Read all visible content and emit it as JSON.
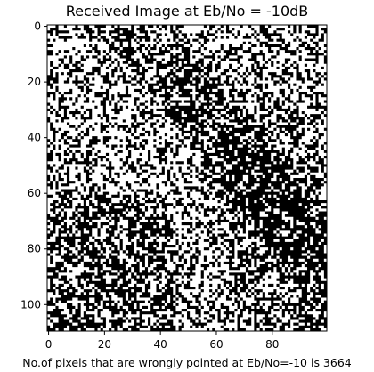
{
  "chart_data": {
    "type": "heatmap",
    "title": "Received Image at Eb/No = -10dB",
    "xlabel": "No.of pixels that are wrongly pointed at Eb/No=-10 is 3664",
    "ylabel": "",
    "colormap": "binary (black / white)",
    "grid": false,
    "image_size": {
      "columns": 100,
      "rows": 110
    },
    "xlim": [
      -0.5,
      99.5
    ],
    "ylim": [
      109.5,
      -0.5
    ],
    "x_ticks": [
      0,
      20,
      40,
      60,
      80
    ],
    "y_ticks": [
      0,
      20,
      40,
      60,
      80,
      100
    ],
    "wrong_pixels": 3664,
    "EbNo_dB": -10
  }
}
